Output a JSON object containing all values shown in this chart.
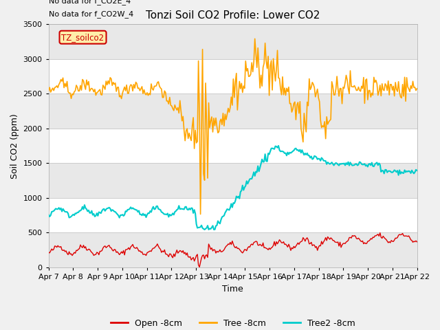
{
  "title": "Tonzi Soil CO2 Profile: Lower CO2",
  "ylabel": "Soil CO2 (ppm)",
  "xlabel": "Time",
  "annotation1": "No data for f_CO2E_4",
  "annotation2": "No data for f_CO2W_4",
  "legend_box_label": "TZ_soilco2",
  "legend_entries": [
    "Open -8cm",
    "Tree -8cm",
    "Tree2 -8cm"
  ],
  "ylim": [
    0,
    3500
  ],
  "fig_bg_color": "#f0f0f0",
  "plot_bg_color": "#ffffff",
  "grid_color": "#d8d8d8",
  "x_tick_labels": [
    "Apr 7",
    "Apr 8",
    "Apr 9",
    "Apr 10",
    "Apr 11",
    "Apr 12",
    "Apr 13",
    "Apr 14",
    "Apr 15",
    "Apr 16",
    "Apr 17",
    "Apr 18",
    "Apr 19",
    "Apr 20",
    "Apr 21",
    "Apr 22"
  ],
  "open_color": "#dd0000",
  "tree_color": "#ffa500",
  "tree2_color": "#00cccc",
  "title_fontsize": 11,
  "annot_fontsize": 8,
  "tick_fontsize": 8,
  "label_fontsize": 9,
  "legend_fontsize": 9
}
